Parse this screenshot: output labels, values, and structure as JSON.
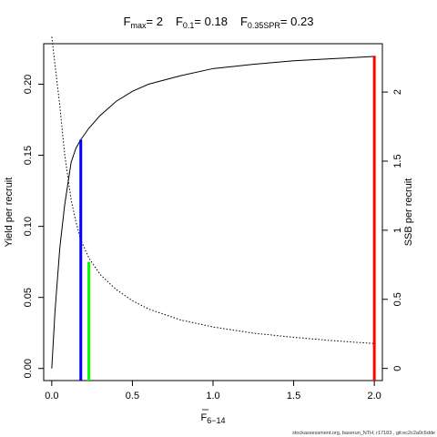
{
  "chart_data": {
    "type": "line",
    "title": {
      "fmax_symbol": "F",
      "fmax_sub": "max",
      "fmax_value": "= 2",
      "f01_symbol": "F",
      "f01_sub": "0.1",
      "f01_value": "= 0.18",
      "fspr_symbol": "F",
      "fspr_sub": "0.35SPR",
      "fspr_value": "= 0.23"
    },
    "xlabel": {
      "symbol": "F",
      "sub": "6−14"
    },
    "ylabel_left": "Yield per recruit",
    "ylabel_right": "SSB per recruit",
    "x_ticks": [
      "0.0",
      "0.5",
      "1.0",
      "1.5",
      "2.0"
    ],
    "y_left_ticks": [
      "0.00",
      "0.05",
      "0.10",
      "0.15",
      "0.20"
    ],
    "y_right_ticks": [
      "0",
      "0.5",
      "1",
      "1.5",
      "2"
    ],
    "xlim": [
      -0.05,
      2.05
    ],
    "ylim_left": [
      -0.0085,
      0.2285
    ],
    "ylim_right": [
      -0.088,
      2.35
    ],
    "grid": false,
    "series": [
      {
        "name": "Yield per recruit",
        "axis": "left",
        "style": "solid",
        "color": "#000000",
        "x": [
          0,
          0.02,
          0.05,
          0.08,
          0.12,
          0.15,
          0.18,
          0.23,
          0.3,
          0.4,
          0.5,
          0.6,
          0.8,
          1.0,
          1.25,
          1.5,
          1.75,
          2.0
        ],
        "y": [
          0,
          0.04,
          0.085,
          0.115,
          0.145,
          0.155,
          0.161,
          0.169,
          0.178,
          0.188,
          0.195,
          0.2,
          0.206,
          0.211,
          0.214,
          0.2165,
          0.218,
          0.2195
        ]
      },
      {
        "name": "SSB per recruit",
        "axis": "right",
        "style": "dotted",
        "color": "#000000",
        "x": [
          0,
          0.02,
          0.05,
          0.08,
          0.12,
          0.15,
          0.18,
          0.23,
          0.3,
          0.4,
          0.5,
          0.6,
          0.8,
          1.0,
          1.25,
          1.5,
          1.75,
          2.0
        ],
        "y": [
          2.4,
          2.2,
          1.9,
          1.55,
          1.22,
          1.06,
          0.93,
          0.8,
          0.68,
          0.57,
          0.49,
          0.43,
          0.35,
          0.3,
          0.255,
          0.225,
          0.2,
          0.18
        ]
      }
    ],
    "reference_lines": [
      {
        "label": "F0.1",
        "x": 0.18,
        "y_top": 0.161,
        "color": "#0000ff"
      },
      {
        "label": "F0.35SPR",
        "x": 0.23,
        "y_top": 0.075,
        "color": "#00ff00"
      },
      {
        "label": "Fmax",
        "x": 2.0,
        "y_top": 0.22,
        "color": "#ff0000"
      }
    ]
  },
  "footer": "stockassessment.org, baserun_NTH, r17183 , git:ec2c2a0c6dde"
}
